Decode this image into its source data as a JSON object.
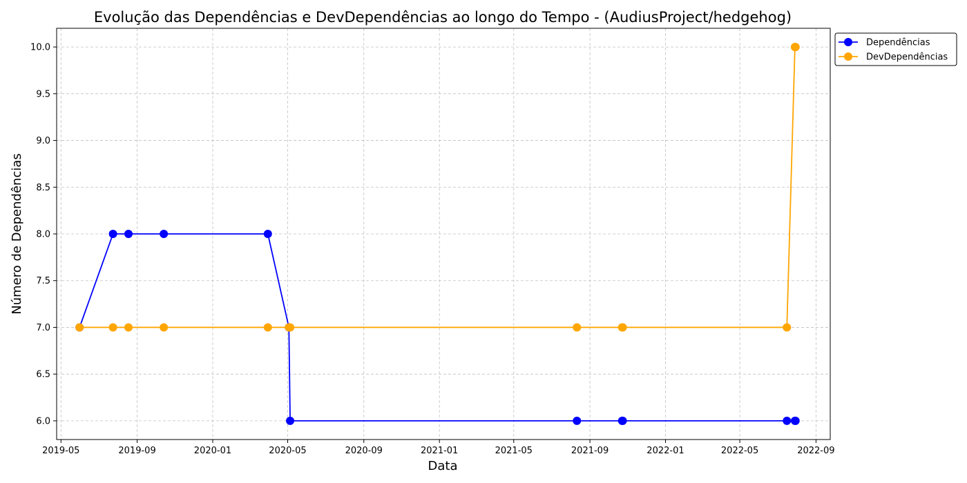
{
  "chart_data": {
    "type": "line",
    "title": "Evolução das Dependências e DevDependências ao longo do Tempo - (AudiusProject/hedgehog)",
    "xlabel": "Data",
    "ylabel": "Número de Dependências",
    "xlim": [
      "2019-04-24",
      "2022-09-24"
    ],
    "ylim": [
      5.8,
      10.2
    ],
    "x_ticks": [
      "2019-05",
      "2019-09",
      "2020-01",
      "2020-05",
      "2020-09",
      "2021-01",
      "2021-05",
      "2021-09",
      "2022-01",
      "2022-05",
      "2022-09"
    ],
    "x_tick_dates": [
      "2019-05-01",
      "2019-09-01",
      "2020-01-01",
      "2020-05-01",
      "2020-09-01",
      "2021-01-01",
      "2021-05-01",
      "2021-09-01",
      "2022-01-01",
      "2022-05-01",
      "2022-09-01"
    ],
    "y_ticks": [
      "6.0",
      "6.5",
      "7.0",
      "7.5",
      "8.0",
      "8.5",
      "9.0",
      "9.5",
      "10.0"
    ],
    "grid": true,
    "legend_position": "outside-top-right",
    "series": [
      {
        "name": "Dependências",
        "color": "#0000ff",
        "points": [
          [
            "2019-05-31",
            7
          ],
          [
            "2019-07-24",
            8
          ],
          [
            "2019-08-18",
            8
          ],
          [
            "2019-10-14",
            8
          ],
          [
            "2020-03-30",
            8
          ],
          [
            "2020-05-03",
            7
          ],
          [
            "2020-05-05",
            6
          ],
          [
            "2021-08-11",
            6
          ],
          [
            "2021-10-23",
            6
          ],
          [
            "2021-10-24",
            6
          ],
          [
            "2022-07-16",
            6
          ],
          [
            "2022-07-29",
            6
          ],
          [
            "2022-07-30",
            6
          ]
        ]
      },
      {
        "name": "DevDependências",
        "color": "#ffa500",
        "points": [
          [
            "2019-05-31",
            7
          ],
          [
            "2019-07-24",
            7
          ],
          [
            "2019-08-18",
            7
          ],
          [
            "2019-10-14",
            7
          ],
          [
            "2020-03-30",
            7
          ],
          [
            "2020-05-03",
            7
          ],
          [
            "2020-05-05",
            7
          ],
          [
            "2021-08-11",
            7
          ],
          [
            "2021-10-23",
            7
          ],
          [
            "2021-10-24",
            7
          ],
          [
            "2022-07-16",
            7
          ],
          [
            "2022-07-29",
            10
          ],
          [
            "2022-07-30",
            10
          ]
        ]
      }
    ]
  }
}
